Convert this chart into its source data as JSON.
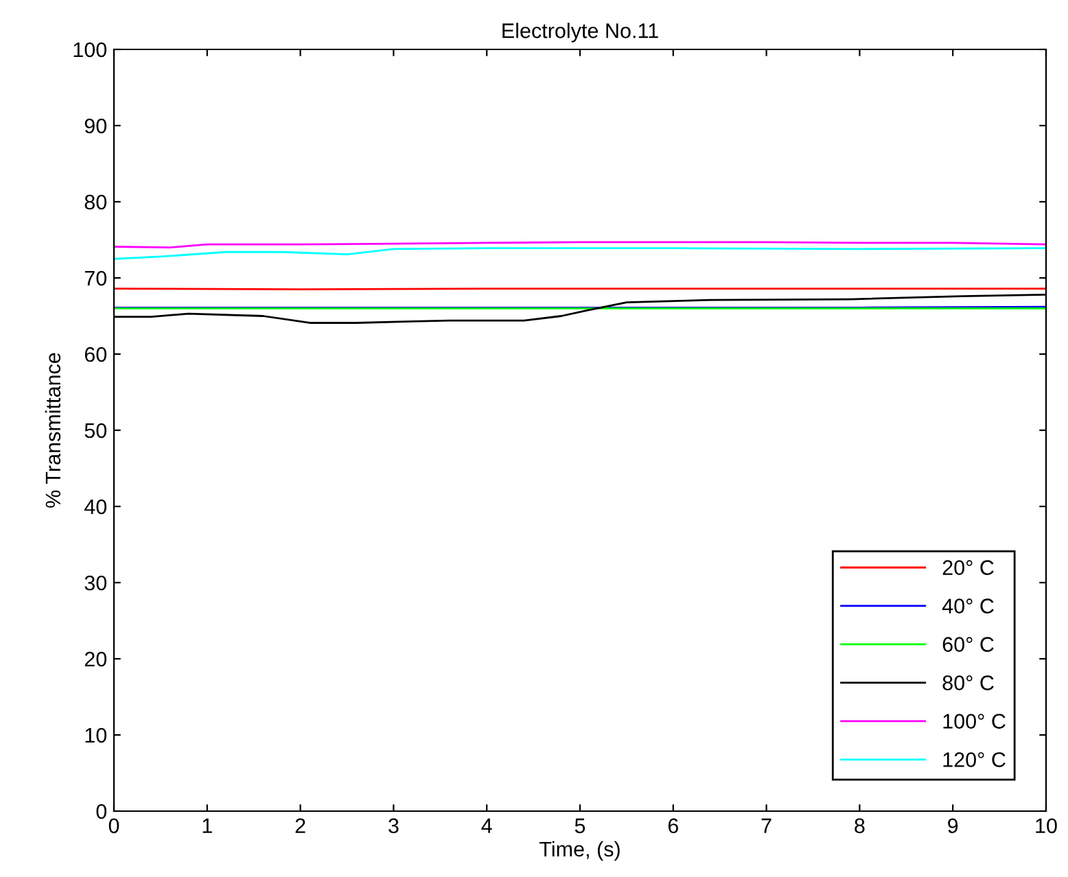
{
  "chart_data": {
    "type": "line",
    "title": "Electrolyte No.11",
    "xlabel": "Time, (s)",
    "ylabel": "% Transmittance",
    "xlim": [
      0,
      10
    ],
    "xticks": [
      0,
      1,
      2,
      3,
      4,
      5,
      6,
      7,
      8,
      9,
      10
    ],
    "ylim": [
      0,
      100
    ],
    "yticks": [
      0,
      10,
      20,
      30,
      40,
      50,
      60,
      70,
      80,
      90,
      100
    ],
    "grid": false,
    "legend": "bottom right",
    "series": [
      {
        "name": "20° C",
        "color": "#ff0000",
        "x": [
          0,
          2,
          4,
          6,
          8,
          10
        ],
        "values": [
          68.6,
          68.5,
          68.6,
          68.6,
          68.6,
          68.6
        ]
      },
      {
        "name": "40° C",
        "color": "#0000ff",
        "x": [
          0,
          2,
          4,
          6,
          8,
          10
        ],
        "values": [
          66.1,
          66.1,
          66.1,
          66.1,
          66.1,
          66.2
        ]
      },
      {
        "name": "60° C",
        "color": "#00ff00",
        "x": [
          0,
          2,
          4,
          6,
          8,
          10
        ],
        "values": [
          66.0,
          66.0,
          66.0,
          66.0,
          66.0,
          66.0
        ]
      },
      {
        "name": "80° C",
        "color": "#000000",
        "x": [
          0,
          0.4,
          0.8,
          1.6,
          2.1,
          2.6,
          3.2,
          3.6,
          4.4,
          4.8,
          5.1,
          5.5,
          6.4,
          7.9,
          9.1,
          10
        ],
        "values": [
          64.9,
          64.9,
          65.3,
          65.0,
          64.1,
          64.1,
          64.3,
          64.4,
          64.4,
          65.0,
          65.8,
          66.8,
          67.1,
          67.2,
          67.6,
          67.8
        ]
      },
      {
        "name": "100° C",
        "color": "#ff00ff",
        "x": [
          0,
          0.6,
          1.0,
          2.0,
          3.0,
          4.0,
          5.0,
          6.0,
          7.0,
          8.0,
          9.0,
          10
        ],
        "values": [
          74.1,
          74.0,
          74.4,
          74.4,
          74.5,
          74.6,
          74.7,
          74.7,
          74.7,
          74.6,
          74.6,
          74.4
        ]
      },
      {
        "name": "120° C",
        "color": "#00ffff",
        "x": [
          0,
          0.5,
          1.2,
          1.8,
          2.5,
          3.0,
          4.0,
          6.0,
          8.0,
          10
        ],
        "values": [
          72.5,
          72.8,
          73.4,
          73.4,
          73.1,
          73.8,
          73.9,
          73.9,
          73.8,
          73.9
        ]
      }
    ]
  }
}
